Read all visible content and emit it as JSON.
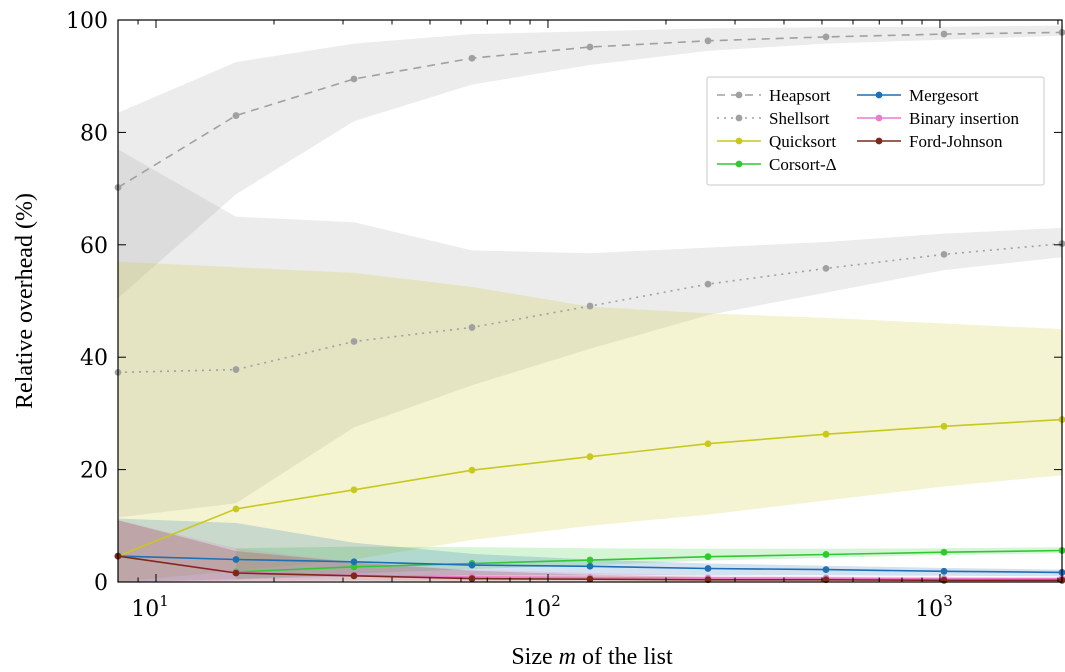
{
  "chart_data": {
    "type": "line",
    "xlabel": "Size m of the list",
    "ylabel": "Relative overhead (%)",
    "xscale": "log",
    "xlim": [
      8,
      2048
    ],
    "ylim": [
      0,
      100
    ],
    "x_ticks": [
      {
        "value": 10,
        "label": "10",
        "exp": "1"
      },
      {
        "value": 100,
        "label": "10",
        "exp": "2"
      },
      {
        "value": 1000,
        "label": "10",
        "exp": "3"
      }
    ],
    "y_ticks": [
      0,
      20,
      40,
      60,
      80,
      100
    ],
    "legend_position": "upper-right",
    "grid": false,
    "x": [
      8,
      16,
      32,
      64,
      128,
      256,
      512,
      1024,
      2048
    ],
    "series": [
      {
        "name": "Heapsort",
        "color": "#a0a0a0",
        "style": "dashed",
        "values": [
          70.2,
          83.0,
          89.5,
          93.2,
          95.2,
          96.3,
          97.0,
          97.5,
          97.8
        ],
        "band_low": [
          50.5,
          69.0,
          82.0,
          88.5,
          92.0,
          94.5,
          95.8,
          96.5,
          97.2
        ],
        "band_high": [
          83.5,
          92.5,
          95.8,
          97.5,
          98.0,
          98.5,
          98.7,
          98.8,
          99.0
        ]
      },
      {
        "name": "Shellsort",
        "color": "#a0a0a0",
        "style": "dotted",
        "values": [
          37.3,
          37.8,
          42.8,
          45.3,
          49.1,
          53.0,
          55.8,
          58.3,
          60.2
        ],
        "band_low": [
          11.5,
          14.0,
          27.5,
          35.0,
          41.5,
          47.5,
          51.5,
          55.5,
          57.8
        ],
        "band_high": [
          77.0,
          65.0,
          64.0,
          59.0,
          58.5,
          59.5,
          60.5,
          62.0,
          63.0
        ]
      },
      {
        "name": "Quicksort",
        "color": "#c8c81e",
        "style": "solid",
        "values": [
          4.6,
          13.0,
          16.4,
          19.9,
          22.3,
          24.6,
          26.3,
          27.7,
          28.9
        ],
        "band_low": [
          0.0,
          2.0,
          4.0,
          7.5,
          10.0,
          12.0,
          14.5,
          17.0,
          19.0
        ],
        "band_high": [
          57.0,
          56.0,
          55.0,
          52.5,
          49.0,
          47.8,
          47.0,
          46.0,
          45.0
        ]
      },
      {
        "name": "Corsort-Δ",
        "color": "#32c832",
        "style": "solid",
        "values": [
          null,
          1.8,
          2.7,
          3.3,
          3.9,
          4.5,
          4.9,
          5.3,
          5.6
        ],
        "band_low": [
          null,
          0.5,
          1.5,
          2.3,
          3.0,
          3.8,
          4.3,
          4.8,
          5.1
        ],
        "band_high": [
          null,
          6.0,
          6.3,
          6.2,
          6.0,
          5.9,
          5.9,
          6.0,
          6.2
        ]
      },
      {
        "name": "Mergesort",
        "color": "#1f6fb4",
        "style": "solid",
        "values": [
          4.6,
          4.0,
          3.6,
          3.0,
          2.8,
          2.4,
          2.2,
          1.9,
          1.7
        ],
        "band_low": [
          0.0,
          0.5,
          1.0,
          1.2,
          1.3,
          1.2,
          1.2,
          1.1,
          1.0
        ],
        "band_high": [
          11.3,
          10.5,
          7.0,
          5.0,
          4.0,
          3.3,
          2.9,
          2.5,
          2.2
        ]
      },
      {
        "name": "Binary insertion",
        "color": "#f07ac8",
        "style": "solid",
        "values": [
          4.6,
          1.7,
          1.2,
          0.9,
          0.8,
          0.7,
          0.7,
          0.6,
          0.6
        ],
        "band_low": [
          0.0,
          0.2,
          0.3,
          0.3,
          0.4,
          0.4,
          0.4,
          0.4,
          0.4
        ],
        "band_high": [
          11.0,
          6.0,
          3.5,
          2.2,
          1.6,
          1.2,
          1.0,
          0.9,
          0.8
        ]
      },
      {
        "name": "Ford-Johnson",
        "color": "#7a2a1a",
        "style": "solid",
        "values": [
          4.6,
          1.6,
          1.1,
          0.6,
          0.5,
          0.4,
          0.4,
          0.3,
          0.3
        ],
        "band_low": [
          0.0,
          0.2,
          0.2,
          0.1,
          0.1,
          0.1,
          0.1,
          0.1,
          0.1
        ],
        "band_high": [
          11.0,
          5.5,
          3.5,
          2.0,
          1.3,
          0.9,
          0.8,
          0.6,
          0.5
        ]
      }
    ],
    "legend_columns": [
      [
        "Heapsort",
        "Shellsort",
        "Quicksort",
        "Corsort-Δ"
      ],
      [
        "Mergesort",
        "Binary insertion",
        "Ford-Johnson"
      ]
    ]
  }
}
